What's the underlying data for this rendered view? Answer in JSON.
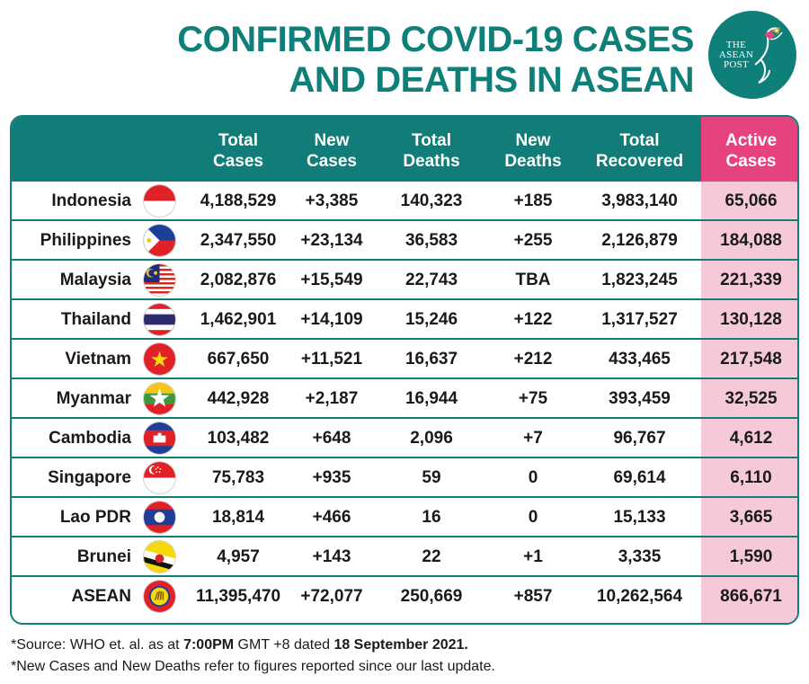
{
  "header": {
    "title_line1": "CONFIRMED COVID-19 CASES",
    "title_line2": "AND DEATHS IN ASEAN"
  },
  "logo": {
    "line1": "THE",
    "line2": "ASEAN",
    "line3": "POST",
    "icon": "hummingbird-icon"
  },
  "table": {
    "columns": [
      {
        "line1": "",
        "line2": ""
      },
      {
        "line1": "Total",
        "line2": "Cases"
      },
      {
        "line1": "New",
        "line2": "Cases"
      },
      {
        "line1": "Total",
        "line2": "Deaths"
      },
      {
        "line1": "New",
        "line2": "Deaths"
      },
      {
        "line1": "Total",
        "line2": "Recovered"
      },
      {
        "line1": "Active",
        "line2": "Cases"
      }
    ],
    "rows": [
      {
        "country": "Indonesia",
        "flag": "indonesia-flag-icon",
        "total_cases": "4,188,529",
        "new_cases": "+3,385",
        "total_deaths": "140,323",
        "new_deaths": "+185",
        "total_recovered": "3,983,140",
        "active_cases": "65,066"
      },
      {
        "country": "Philippines",
        "flag": "philippines-flag-icon",
        "total_cases": "2,347,550",
        "new_cases": "+23,134",
        "total_deaths": "36,583",
        "new_deaths": "+255",
        "total_recovered": "2,126,879",
        "active_cases": "184,088"
      },
      {
        "country": "Malaysia",
        "flag": "malaysia-flag-icon",
        "total_cases": "2,082,876",
        "new_cases": "+15,549",
        "total_deaths": "22,743",
        "new_deaths": "TBA",
        "total_recovered": "1,823,245",
        "active_cases": "221,339"
      },
      {
        "country": "Thailand",
        "flag": "thailand-flag-icon",
        "total_cases": "1,462,901",
        "new_cases": "+14,109",
        "total_deaths": "15,246",
        "new_deaths": "+122",
        "total_recovered": "1,317,527",
        "active_cases": "130,128"
      },
      {
        "country": "Vietnam",
        "flag": "vietnam-flag-icon",
        "total_cases": "667,650",
        "new_cases": "+11,521",
        "total_deaths": "16,637",
        "new_deaths": "+212",
        "total_recovered": "433,465",
        "active_cases": "217,548"
      },
      {
        "country": "Myanmar",
        "flag": "myanmar-flag-icon",
        "total_cases": "442,928",
        "new_cases": "+2,187",
        "total_deaths": "16,944",
        "new_deaths": "+75",
        "total_recovered": "393,459",
        "active_cases": "32,525"
      },
      {
        "country": "Cambodia",
        "flag": "cambodia-flag-icon",
        "total_cases": "103,482",
        "new_cases": "+648",
        "total_deaths": "2,096",
        "new_deaths": "+7",
        "total_recovered": "96,767",
        "active_cases": "4,612"
      },
      {
        "country": "Singapore",
        "flag": "singapore-flag-icon",
        "total_cases": "75,783",
        "new_cases": "+935",
        "total_deaths": "59",
        "new_deaths": "0",
        "total_recovered": "69,614",
        "active_cases": "6,110"
      },
      {
        "country": "Lao PDR",
        "flag": "laos-flag-icon",
        "total_cases": "18,814",
        "new_cases": "+466",
        "total_deaths": "16",
        "new_deaths": "0",
        "total_recovered": "15,133",
        "active_cases": "3,665"
      },
      {
        "country": "Brunei",
        "flag": "brunei-flag-icon",
        "total_cases": "4,957",
        "new_cases": "+143",
        "total_deaths": "22",
        "new_deaths": "+1",
        "total_recovered": "3,335",
        "active_cases": "1,590"
      },
      {
        "country": "ASEAN",
        "flag": "asean-flag-icon",
        "total_cases": "11,395,470",
        "new_cases": "+72,077",
        "total_deaths": "250,669",
        "new_deaths": "+857",
        "total_recovered": "10,262,564",
        "active_cases": "866,671"
      }
    ]
  },
  "footnotes": {
    "source_prefix": "*Source: WHO et. al. as at ",
    "source_time": "7:00PM",
    "source_middle": " GMT +8 dated ",
    "source_date": "18 September 2021.",
    "note": "*New Cases and New Deaths refer to figures reported since our last update."
  },
  "colors": {
    "teal": "#127c78",
    "pink_header": "#e6427f",
    "pink_column": "#f6c9d9"
  }
}
